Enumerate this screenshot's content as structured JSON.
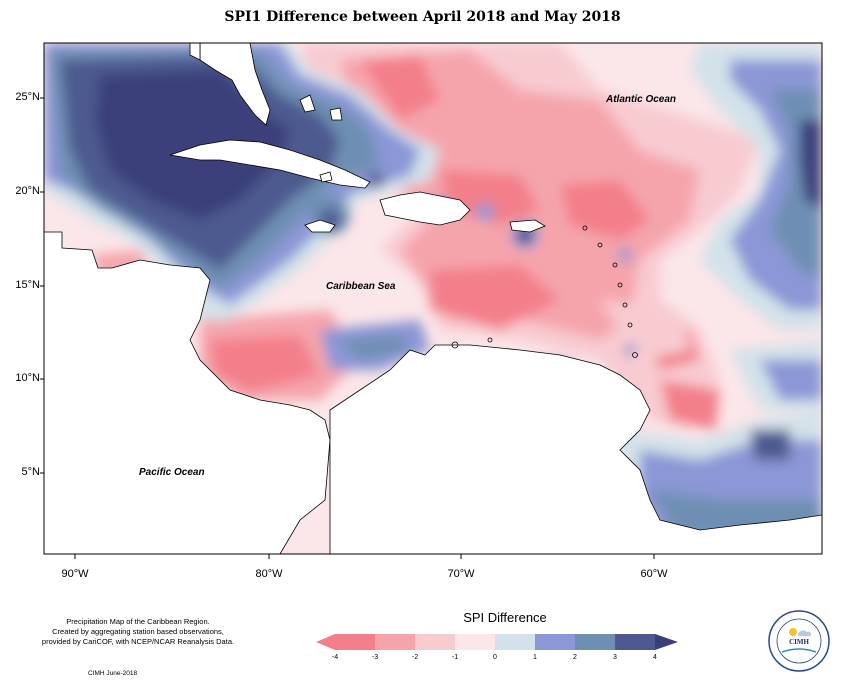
{
  "title": "SPI1 Difference between April 2018 and May 2018",
  "map": {
    "lat_labels": [
      "25°N",
      "20°N",
      "15°N",
      "10°N",
      "5°N"
    ],
    "lon_labels": [
      "90°W",
      "80°W",
      "70°W",
      "60°W"
    ],
    "ocean_labels": {
      "atlantic": "Atlantic Ocean",
      "caribbean": "Caribbean Sea",
      "pacific": "Pacific Ocean"
    },
    "colors": {
      "m4": "#f37f8a",
      "m3": "#f5a4ac",
      "m2": "#f8cbd1",
      "m1": "#fbe6e9",
      "p0": "#d3e2ea",
      "p1": "#8b97d6",
      "p2": "#6e8fb3",
      "p3": "#4e5a8f",
      "p4": "#3a3f7a"
    }
  },
  "footer": {
    "line1": "Precipitation Map of the Caribbean Region.",
    "line2": "Created by aggregating station based observations,",
    "line3": "provided by CariCOF, with NCEP/NCAR Reanalysis Data.",
    "credit": "CIMH June-2018"
  },
  "legend": {
    "title": "SPI Difference",
    "ticks": [
      "-4",
      "-3",
      "-2",
      "-1",
      "0",
      "1",
      "2",
      "3",
      "4"
    ]
  },
  "logo": {
    "text": "CIMH"
  }
}
